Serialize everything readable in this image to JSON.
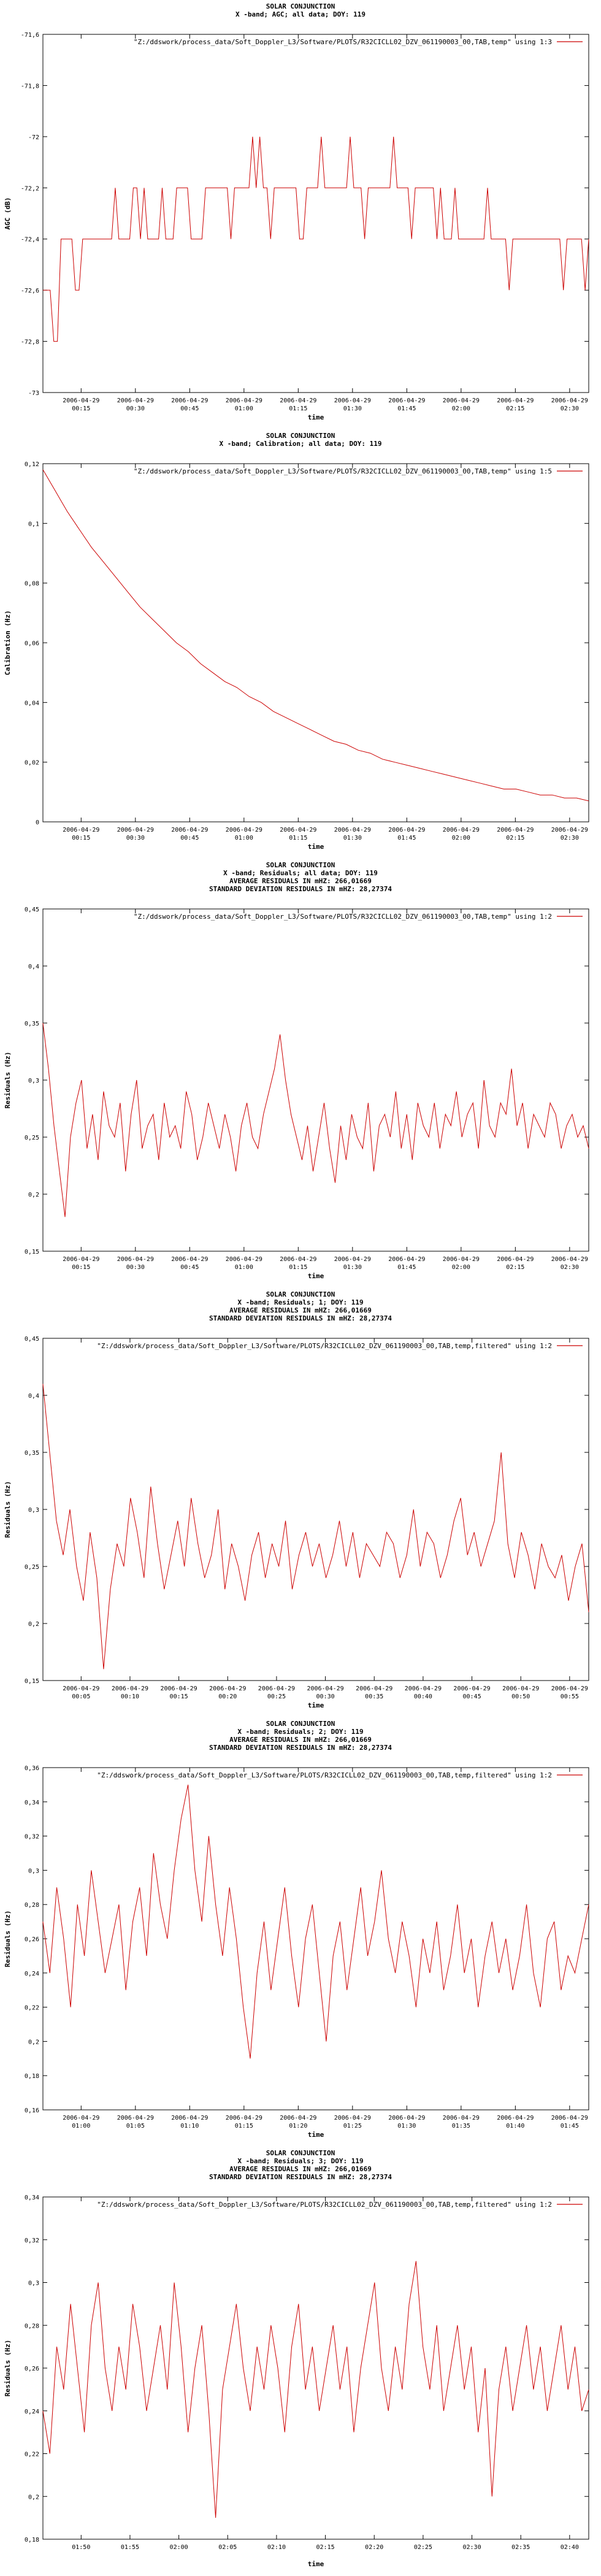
{
  "colors": {
    "series": "#cc0000",
    "axis": "#000000",
    "background": "#ffffff"
  },
  "chart_data": [
    {
      "type": "line",
      "title_lines": [
        "SOLAR CONJUNCTION",
        "X -band; AGC; all data; DOY: 119"
      ],
      "legend": "\"Z:/ddswork/process_data/Soft_Doppler_L3/Software/PLOTS/R32CICLL02_DZV_061190003_00,TAB,temp\" using 1:3",
      "legend_position": "top-right",
      "xlabel": "time",
      "ylabel": "AGC (dB)",
      "ylim": [
        -73,
        -71.6
      ],
      "y_ticks": [
        "-71,6",
        "-71,8",
        "-72",
        "-72,2",
        "-72,4",
        "-72,6",
        "-72,8",
        "-73"
      ],
      "x_ticks": [
        "2006-04-29 00:15",
        "2006-04-29 00:30",
        "2006-04-29 00:45",
        "2006-04-29 01:00",
        "2006-04-29 01:15",
        "2006-04-29 01:30",
        "2006-04-29 01:45",
        "2006-04-29 02:00",
        "2006-04-29 02:15",
        "2006-04-29 02:30"
      ],
      "xlim": [
        "2006-04-29 00:05",
        "2006-04-29 02:38"
      ],
      "grid": false,
      "y": [
        -72.6,
        -72.6,
        -72.6,
        -72.8,
        -72.8,
        -72.4,
        -72.4,
        -72.4,
        -72.4,
        -72.6,
        -72.6,
        -72.4,
        -72.4,
        -72.4,
        -72.4,
        -72.4,
        -72.4,
        -72.4,
        -72.4,
        -72.4,
        -72.2,
        -72.4,
        -72.4,
        -72.4,
        -72.4,
        -72.2,
        -72.2,
        -72.4,
        -72.2,
        -72.4,
        -72.4,
        -72.4,
        -72.4,
        -72.2,
        -72.4,
        -72.4,
        -72.4,
        -72.2,
        -72.2,
        -72.2,
        -72.2,
        -72.4,
        -72.4,
        -72.4,
        -72.4,
        -72.2,
        -72.2,
        -72.2,
        -72.2,
        -72.2,
        -72.2,
        -72.2,
        -72.4,
        -72.2,
        -72.2,
        -72.2,
        -72.2,
        -72.2,
        -72.0,
        -72.2,
        -72.0,
        -72.2,
        -72.2,
        -72.4,
        -72.2,
        -72.2,
        -72.2,
        -72.2,
        -72.2,
        -72.2,
        -72.2,
        -72.4,
        -72.4,
        -72.2,
        -72.2,
        -72.2,
        -72.2,
        -72.0,
        -72.2,
        -72.2,
        -72.2,
        -72.2,
        -72.2,
        -72.2,
        -72.2,
        -72.0,
        -72.2,
        -72.2,
        -72.2,
        -72.4,
        -72.2,
        -72.2,
        -72.2,
        -72.2,
        -72.2,
        -72.2,
        -72.2,
        -72.0,
        -72.2,
        -72.2,
        -72.2,
        -72.2,
        -72.4,
        -72.2,
        -72.2,
        -72.2,
        -72.2,
        -72.2,
        -72.2,
        -72.4,
        -72.2,
        -72.4,
        -72.4,
        -72.4,
        -72.2,
        -72.4,
        -72.4,
        -72.4,
        -72.4,
        -72.4,
        -72.4,
        -72.4,
        -72.4,
        -72.2,
        -72.4,
        -72.4,
        -72.4,
        -72.4,
        -72.4,
        -72.6,
        -72.4,
        -72.4,
        -72.4,
        -72.4,
        -72.4,
        -72.4,
        -72.4,
        -72.4,
        -72.4,
        -72.4,
        -72.4,
        -72.4,
        -72.4,
        -72.4,
        -72.6,
        -72.4,
        -72.4,
        -72.4,
        -72.4,
        -72.4,
        -72.6,
        -72.4
      ]
    },
    {
      "type": "line",
      "title_lines": [
        "SOLAR CONJUNCTION",
        "X -band; Calibration; all data; DOY: 119"
      ],
      "legend": "\"Z:/ddswork/process_data/Soft_Doppler_L3/Software/PLOTS/R32CICLL02_DZV_061190003_00,TAB,temp\" using 1:5",
      "legend_position": "top-right",
      "xlabel": "time",
      "ylabel": "Calibration (Hz)",
      "ylim": [
        0,
        0.12
      ],
      "y_ticks": [
        "0,12",
        "0,1",
        "0,08",
        "0,06",
        "0,04",
        "0,02",
        "0"
      ],
      "x_ticks": [
        "2006-04-29 00:15",
        "2006-04-29 00:30",
        "2006-04-29 00:45",
        "2006-04-29 01:00",
        "2006-04-29 01:15",
        "2006-04-29 01:30",
        "2006-04-29 01:45",
        "2006-04-29 02:00",
        "2006-04-29 02:15",
        "2006-04-29 02:30"
      ],
      "xlim": [
        "2006-04-29 00:05",
        "2006-04-29 02:38"
      ],
      "grid": false,
      "y": [
        0.118,
        0.111,
        0.104,
        0.098,
        0.092,
        0.087,
        0.082,
        0.077,
        0.072,
        0.068,
        0.064,
        0.06,
        0.057,
        0.053,
        0.05,
        0.047,
        0.045,
        0.042,
        0.04,
        0.037,
        0.035,
        0.033,
        0.031,
        0.029,
        0.027,
        0.026,
        0.024,
        0.023,
        0.021,
        0.02,
        0.019,
        0.018,
        0.017,
        0.016,
        0.015,
        0.014,
        0.013,
        0.012,
        0.011,
        0.011,
        0.01,
        0.009,
        0.009,
        0.008,
        0.008,
        0.007
      ]
    },
    {
      "type": "line",
      "title_lines": [
        "SOLAR CONJUNCTION",
        "X -band; Residuals; all data; DOY: 119",
        "AVERAGE RESIDUALS IN mHZ: 266,01669",
        "STANDARD DEVIATION RESIDUALS IN mHZ: 28,27374"
      ],
      "legend": "\"Z:/ddswork/process_data/Soft_Doppler_L3/Software/PLOTS/R32CICLL02_DZV_061190003_00,TAB,temp\" using 1:2",
      "legend_position": "top-right",
      "xlabel": "time",
      "ylabel": "Residuals (Hz)",
      "ylim": [
        0.15,
        0.45
      ],
      "y_ticks": [
        "0,45",
        "0,4",
        "0,35",
        "0,3",
        "0,25",
        "0,2",
        "0,15"
      ],
      "x_ticks": [
        "2006-04-29 00:15",
        "2006-04-29 00:30",
        "2006-04-29 00:45",
        "2006-04-29 01:00",
        "2006-04-29 01:15",
        "2006-04-29 01:30",
        "2006-04-29 01:45",
        "2006-04-29 02:00",
        "2006-04-29 02:15",
        "2006-04-29 02:30"
      ],
      "xlim": [
        "2006-04-29 00:05",
        "2006-04-29 02:38"
      ],
      "grid": false,
      "y": [
        0.35,
        0.31,
        0.26,
        0.22,
        0.18,
        0.25,
        0.28,
        0.3,
        0.24,
        0.27,
        0.23,
        0.29,
        0.26,
        0.25,
        0.28,
        0.22,
        0.27,
        0.3,
        0.24,
        0.26,
        0.27,
        0.23,
        0.28,
        0.25,
        0.26,
        0.24,
        0.29,
        0.27,
        0.23,
        0.25,
        0.28,
        0.26,
        0.24,
        0.27,
        0.25,
        0.22,
        0.26,
        0.28,
        0.25,
        0.24,
        0.27,
        0.29,
        0.31,
        0.34,
        0.3,
        0.27,
        0.25,
        0.23,
        0.26,
        0.22,
        0.25,
        0.28,
        0.24,
        0.21,
        0.26,
        0.23,
        0.27,
        0.25,
        0.24,
        0.28,
        0.22,
        0.26,
        0.27,
        0.25,
        0.29,
        0.24,
        0.27,
        0.23,
        0.28,
        0.26,
        0.25,
        0.28,
        0.24,
        0.27,
        0.26,
        0.29,
        0.25,
        0.27,
        0.28,
        0.24,
        0.3,
        0.26,
        0.25,
        0.28,
        0.27,
        0.31,
        0.26,
        0.28,
        0.24,
        0.27,
        0.26,
        0.25,
        0.28,
        0.27,
        0.24,
        0.26,
        0.27,
        0.25,
        0.26,
        0.24
      ]
    },
    {
      "type": "line",
      "title_lines": [
        "SOLAR CONJUNCTION",
        "X -band; Residuals; 1; DOY: 119",
        "AVERAGE RESIDUALS IN mHZ: 266,01669",
        "STANDARD DEVIATION RESIDUALS IN mHZ: 28,27374"
      ],
      "legend": "\"Z:/ddswork/process_data/Soft_Doppler_L3/Software/PLOTS/R32CICLL02_DZV_061190003_00,TAB,temp,filtered\" using 1:2",
      "legend_position": "top-right",
      "xlabel": "time",
      "ylabel": "Residuals (Hz)",
      "ylim": [
        0.15,
        0.45
      ],
      "y_ticks": [
        "0,45",
        "0,4",
        "0,35",
        "0,3",
        "0,25",
        "0,2",
        "0,15"
      ],
      "x_ticks": [
        "2006-04-29 00:05",
        "2006-04-29 00:10",
        "2006-04-29 00:15",
        "2006-04-29 00:20",
        "2006-04-29 00:25",
        "2006-04-29 00:30",
        "2006-04-29 00:35",
        "2006-04-29 00:40",
        "2006-04-29 00:45",
        "2006-04-29 00:50",
        "2006-04-29 00:55"
      ],
      "xlim": [
        "2006-04-29 00:04",
        "2006-04-29 00:55"
      ],
      "grid": false,
      "y": [
        0.41,
        0.35,
        0.29,
        0.26,
        0.3,
        0.25,
        0.22,
        0.28,
        0.24,
        0.16,
        0.23,
        0.27,
        0.25,
        0.31,
        0.28,
        0.24,
        0.32,
        0.27,
        0.23,
        0.26,
        0.29,
        0.25,
        0.31,
        0.27,
        0.24,
        0.26,
        0.3,
        0.23,
        0.27,
        0.25,
        0.22,
        0.26,
        0.28,
        0.24,
        0.27,
        0.25,
        0.29,
        0.23,
        0.26,
        0.28,
        0.25,
        0.27,
        0.24,
        0.26,
        0.29,
        0.25,
        0.28,
        0.24,
        0.27,
        0.26,
        0.25,
        0.28,
        0.27,
        0.24,
        0.26,
        0.3,
        0.25,
        0.28,
        0.27,
        0.24,
        0.26,
        0.29,
        0.31,
        0.26,
        0.28,
        0.25,
        0.27,
        0.29,
        0.35,
        0.27,
        0.24,
        0.28,
        0.26,
        0.23,
        0.27,
        0.25,
        0.24,
        0.26,
        0.22,
        0.25,
        0.27,
        0.21
      ]
    },
    {
      "type": "line",
      "title_lines": [
        "SOLAR CONJUNCTION",
        "X -band; Residuals; 2; DOY: 119",
        "AVERAGE RESIDUALS IN mHZ: 266,01669",
        "STANDARD DEVIATION RESIDUALS IN mHZ: 28,27374"
      ],
      "legend": "\"Z:/ddswork/process_data/Soft_Doppler_L3/Software/PLOTS/R32CICLL02_DZV_061190003_00,TAB,temp,filtered\" using 1:2",
      "legend_position": "top-right",
      "xlabel": "time",
      "ylabel": "Residuals (Hz)",
      "ylim": [
        0.16,
        0.36
      ],
      "y_ticks": [
        "0,36",
        "0,34",
        "0,32",
        "0,3",
        "0,28",
        "0,26",
        "0,24",
        "0,22",
        "0,2",
        "0,18",
        "0,16"
      ],
      "x_ticks": [
        "2006-04-29 01:00",
        "2006-04-29 01:05",
        "2006-04-29 01:10",
        "2006-04-29 01:15",
        "2006-04-29 01:20",
        "2006-04-29 01:25",
        "2006-04-29 01:30",
        "2006-04-29 01:35",
        "2006-04-29 01:40",
        "2006-04-29 01:45"
      ],
      "xlim": [
        "2006-04-29 00:56",
        "2006-04-29 01:48"
      ],
      "grid": false,
      "y": [
        0.27,
        0.24,
        0.29,
        0.26,
        0.22,
        0.28,
        0.25,
        0.3,
        0.27,
        0.24,
        0.26,
        0.28,
        0.23,
        0.27,
        0.29,
        0.25,
        0.31,
        0.28,
        0.26,
        0.3,
        0.33,
        0.35,
        0.3,
        0.27,
        0.32,
        0.28,
        0.25,
        0.29,
        0.26,
        0.22,
        0.19,
        0.24,
        0.27,
        0.23,
        0.26,
        0.29,
        0.25,
        0.22,
        0.26,
        0.28,
        0.24,
        0.2,
        0.25,
        0.27,
        0.23,
        0.26,
        0.29,
        0.25,
        0.27,
        0.3,
        0.26,
        0.24,
        0.27,
        0.25,
        0.22,
        0.26,
        0.24,
        0.27,
        0.23,
        0.25,
        0.28,
        0.24,
        0.26,
        0.22,
        0.25,
        0.27,
        0.24,
        0.26,
        0.23,
        0.25,
        0.28,
        0.24,
        0.22,
        0.26,
        0.27,
        0.23,
        0.25,
        0.24,
        0.26,
        0.28
      ]
    },
    {
      "type": "line",
      "title_lines": [
        "SOLAR CONJUNCTION",
        "X -band; Residuals; 3; DOY: 119",
        "AVERAGE RESIDUALS IN mHZ: 266,01669",
        "STANDARD DEVIATION RESIDUALS IN mHZ: 28,27374"
      ],
      "legend": "\"Z:/ddswork/process_data/Soft_Doppler_L3/Software/PLOTS/R32CICLL02_DZV_061190003_00,TAB,temp,filtered\" using 1:2",
      "legend_position": "top-right",
      "xlabel": "time",
      "ylabel": "Residuals (Hz)",
      "ylim": [
        0.18,
        0.34
      ],
      "y_ticks": [
        "0,34",
        "0,32",
        "0,3",
        "0,28",
        "0,26",
        "0,24",
        "0,22",
        "0,2",
        "0,18"
      ],
      "x_ticks": [
        "01:50",
        "01:55",
        "02:00",
        "02:05",
        "02:10",
        "02:15",
        "02:20",
        "02:25",
        "02:30",
        "02:35",
        "02:40"
      ],
      "xlim": [
        "2006-04-29 01:49",
        "2006-04-29 02:40"
      ],
      "grid": false,
      "y": [
        0.24,
        0.22,
        0.27,
        0.25,
        0.29,
        0.26,
        0.23,
        0.28,
        0.3,
        0.26,
        0.24,
        0.27,
        0.25,
        0.29,
        0.27,
        0.24,
        0.26,
        0.28,
        0.25,
        0.3,
        0.27,
        0.23,
        0.26,
        0.28,
        0.24,
        0.19,
        0.25,
        0.27,
        0.29,
        0.26,
        0.24,
        0.27,
        0.25,
        0.28,
        0.26,
        0.23,
        0.27,
        0.29,
        0.25,
        0.27,
        0.24,
        0.26,
        0.28,
        0.25,
        0.27,
        0.23,
        0.26,
        0.28,
        0.3,
        0.26,
        0.24,
        0.27,
        0.25,
        0.29,
        0.31,
        0.27,
        0.25,
        0.28,
        0.24,
        0.26,
        0.28,
        0.25,
        0.27,
        0.23,
        0.26,
        0.2,
        0.25,
        0.27,
        0.24,
        0.26,
        0.28,
        0.25,
        0.27,
        0.24,
        0.26,
        0.28,
        0.25,
        0.27,
        0.24,
        0.25
      ]
    }
  ]
}
